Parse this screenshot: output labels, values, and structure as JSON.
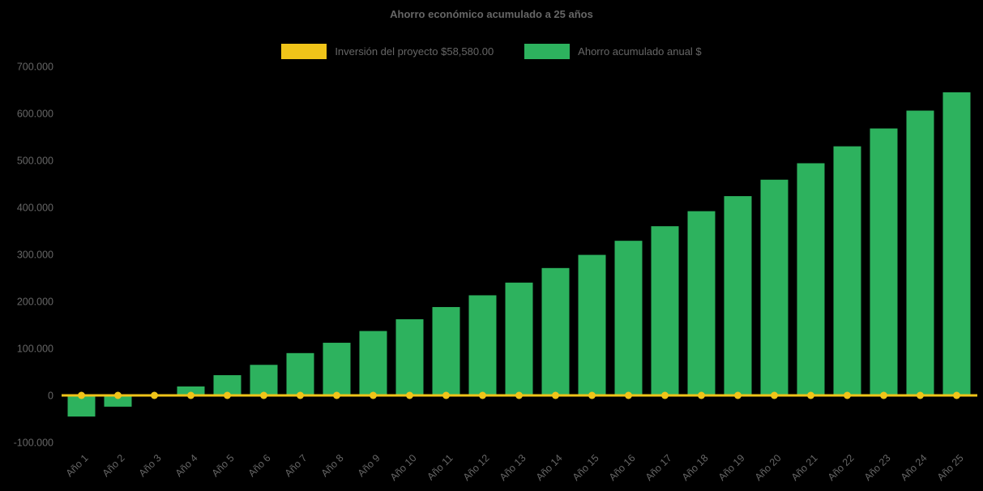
{
  "chart_data": {
    "type": "bar",
    "title": "Ahorro económico acumulado a 25 años",
    "categories": [
      "Año 1",
      "Año 2",
      "Año 3",
      "Año 4",
      "Año 5",
      "Año 6",
      "Año 7",
      "Año 8",
      "Año 9",
      "Año 10",
      "Año 11",
      "Año 12",
      "Año 13",
      "Año 14",
      "Año 15",
      "Año 16",
      "Año 17",
      "Año 18",
      "Año 19",
      "Año 20",
      "Año 21",
      "Año 22",
      "Año 23",
      "Año 24",
      "Año 25"
    ],
    "series": [
      {
        "name": "Inversión del proyecto $58,580.00",
        "type": "line",
        "color": "#f0c419",
        "values": [
          0,
          0,
          0,
          0,
          0,
          0,
          0,
          0,
          0,
          0,
          0,
          0,
          0,
          0,
          0,
          0,
          0,
          0,
          0,
          0,
          0,
          0,
          0,
          0,
          0
        ]
      },
      {
        "name": "Ahorro acumulado anual $",
        "type": "bar",
        "color": "#2db25e",
        "values": [
          -45000,
          -24000,
          500,
          19000,
          43000,
          65000,
          90000,
          112000,
          137000,
          162000,
          188000,
          213000,
          240000,
          271000,
          299000,
          329000,
          360000,
          392000,
          424000,
          459000,
          494000,
          530000,
          568000,
          606000,
          645000
        ]
      }
    ],
    "ylim": [
      -100000,
      700000
    ],
    "yticks": [
      700000,
      600000,
      500000,
      400000,
      300000,
      200000,
      100000,
      0,
      -100000
    ],
    "ytick_labels": [
      "700.000",
      "600.000",
      "500.000",
      "400.000",
      "300.000",
      "200.000",
      "100.000",
      "0",
      "-100.000"
    ],
    "grid": false,
    "legend_position": "top",
    "background_color": "#000000",
    "text_color": "#666666"
  }
}
